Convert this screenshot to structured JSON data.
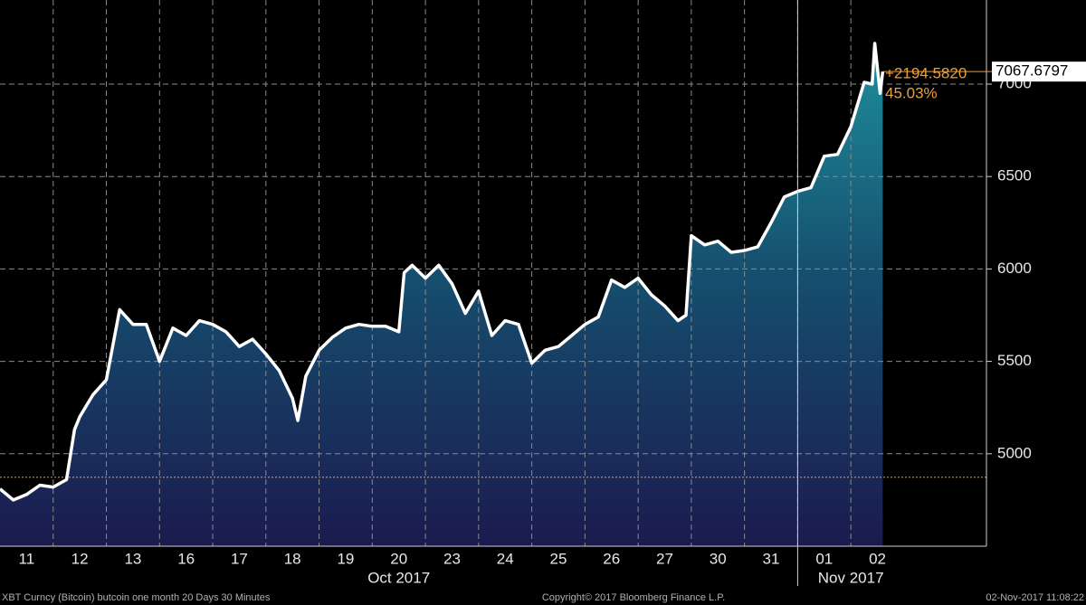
{
  "chart_data": {
    "type": "line",
    "x": [
      0,
      0.25,
      0.5,
      0.75,
      1.0,
      1.25,
      1.4,
      1.5,
      1.75,
      2.0,
      2.25,
      2.5,
      2.75,
      3.0,
      3.25,
      3.5,
      3.75,
      4.0,
      4.25,
      4.5,
      4.75,
      5.0,
      5.25,
      5.5,
      5.6,
      5.75,
      6.0,
      6.25,
      6.5,
      6.75,
      7.0,
      7.25,
      7.5,
      7.6,
      7.75,
      8.0,
      8.25,
      8.5,
      8.75,
      9.0,
      9.25,
      9.5,
      9.75,
      10.0,
      10.25,
      10.5,
      10.75,
      11.0,
      11.25,
      11.5,
      11.75,
      12.0,
      12.25,
      12.5,
      12.75,
      12.9,
      13.0,
      13.25,
      13.5,
      13.75,
      14.0,
      14.25,
      14.5,
      14.75,
      15.0,
      15.25,
      15.5,
      15.75,
      16.0,
      16.25,
      16.4,
      16.45,
      16.55,
      16.6
    ],
    "series": [
      {
        "name": "XBT Curncy",
        "color": "#ffffff",
        "values": [
          4810,
          4750,
          4780,
          4830,
          4820,
          4860,
          5130,
          5200,
          5320,
          5400,
          5780,
          5700,
          5700,
          5500,
          5680,
          5640,
          5720,
          5700,
          5660,
          5580,
          5620,
          5540,
          5450,
          5300,
          5180,
          5420,
          5560,
          5630,
          5680,
          5700,
          5690,
          5690,
          5660,
          5980,
          6020,
          5950,
          6020,
          5920,
          5760,
          5880,
          5640,
          5720,
          5700,
          5490,
          5560,
          5580,
          5640,
          5700,
          5740,
          5940,
          5900,
          5950,
          5860,
          5800,
          5720,
          5750,
          6180,
          6130,
          6150,
          6090,
          6100,
          6120,
          6250,
          6390,
          6420,
          6440,
          6610,
          6620,
          6770,
          7010,
          7000,
          7220,
          6950,
          7067.68
        ]
      }
    ],
    "xlim": [
      0,
      18.55
    ],
    "xticks": [
      {
        "value": 0.5,
        "label": "11"
      },
      {
        "value": 1.5,
        "label": "12"
      },
      {
        "value": 2.5,
        "label": "13"
      },
      {
        "value": 3.5,
        "label": "16"
      },
      {
        "value": 4.5,
        "label": "17"
      },
      {
        "value": 5.5,
        "label": "18"
      },
      {
        "value": 6.5,
        "label": "19"
      },
      {
        "value": 7.5,
        "label": "20"
      },
      {
        "value": 8.5,
        "label": "23"
      },
      {
        "value": 9.5,
        "label": "24"
      },
      {
        "value": 10.5,
        "label": "25"
      },
      {
        "value": 11.5,
        "label": "26"
      },
      {
        "value": 12.5,
        "label": "27"
      },
      {
        "value": 13.5,
        "label": "30"
      },
      {
        "value": 14.5,
        "label": "31"
      },
      {
        "value": 15.5,
        "label": "01"
      },
      {
        "value": 16.5,
        "label": "02"
      }
    ],
    "x_groups": [
      {
        "label": "Oct 2017",
        "from": 0,
        "to": 15
      },
      {
        "label": "Nov 2017",
        "from": 15,
        "to": 17
      }
    ],
    "ylim": [
      4500,
      7455
    ],
    "yticks": [
      5000,
      5500,
      6000,
      6500,
      7000
    ],
    "grid": true,
    "reference_line": 4873.0977,
    "annotations": [
      {
        "value": 7067.6797,
        "label": "7067.6797"
      },
      {
        "value": 2194.582,
        "label": "+2194.5820"
      },
      {
        "value": 45.03,
        "label": "45.03%"
      }
    ],
    "footer": [
      "XBT Curncy (Bitcoin) butcoin one month 20 Days 30 Minutes",
      "Copyright© 2017 Bloomberg Finance L.P.",
      "02-Nov-2017 11:08:22"
    ]
  }
}
